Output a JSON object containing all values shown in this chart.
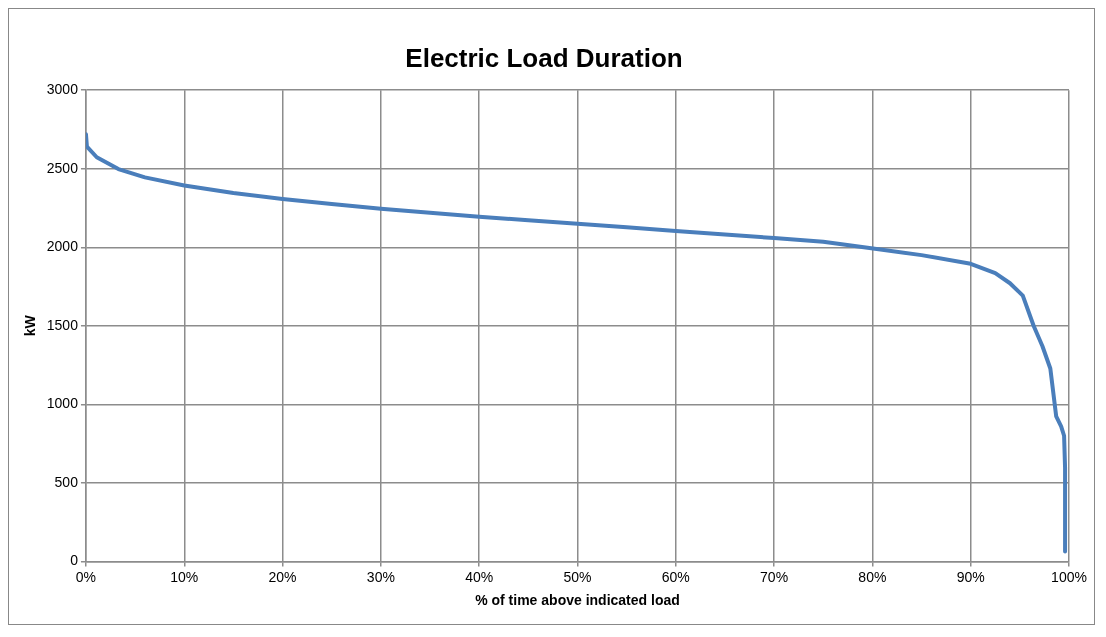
{
  "chart_data": {
    "type": "line",
    "title": "Electric Load Duration",
    "xlabel": "% of time above indicated load",
    "ylabel": "kW",
    "x": [
      0,
      0.1,
      1.1,
      3.3,
      6,
      10,
      15,
      20,
      25,
      30,
      35,
      40,
      45,
      50,
      55,
      60,
      65,
      70,
      75,
      79.7,
      85,
      90,
      92.5,
      94,
      95.3,
      96.4,
      97.3,
      98.1,
      98.7,
      99.2,
      99.5,
      99.6,
      99.6
    ],
    "series": [
      {
        "color": "#4a7ebb",
        "values": [
          2720,
          2641,
          2573,
          2498,
          2445,
          2393,
          2345,
          2307,
          2275,
          2245,
          2220,
          2195,
          2172,
          2150,
          2127,
          2103,
          2081,
          2059,
          2035,
          1995,
          1950,
          1895,
          1835,
          1771,
          1692,
          1500,
          1370,
          1228,
          923,
          860,
          800,
          597,
          63
        ]
      }
    ],
    "xlim": [
      0,
      100
    ],
    "xticks": [
      {
        "value": 0,
        "label": "0%"
      },
      {
        "value": 10,
        "label": "10%"
      },
      {
        "value": 20,
        "label": "20%"
      },
      {
        "value": 30,
        "label": "30%"
      },
      {
        "value": 40,
        "label": "40%"
      },
      {
        "value": 50,
        "label": "50%"
      },
      {
        "value": 60,
        "label": "60%"
      },
      {
        "value": 70,
        "label": "70%"
      },
      {
        "value": 80,
        "label": "80%"
      },
      {
        "value": 90,
        "label": "90%"
      },
      {
        "value": 100,
        "label": "100%"
      }
    ],
    "ylim": [
      0,
      3000
    ],
    "yticks": [
      0,
      500,
      1000,
      1500,
      2000,
      2500,
      3000
    ],
    "grid": true,
    "legend": false,
    "marker": "none",
    "line_style": "solid"
  }
}
